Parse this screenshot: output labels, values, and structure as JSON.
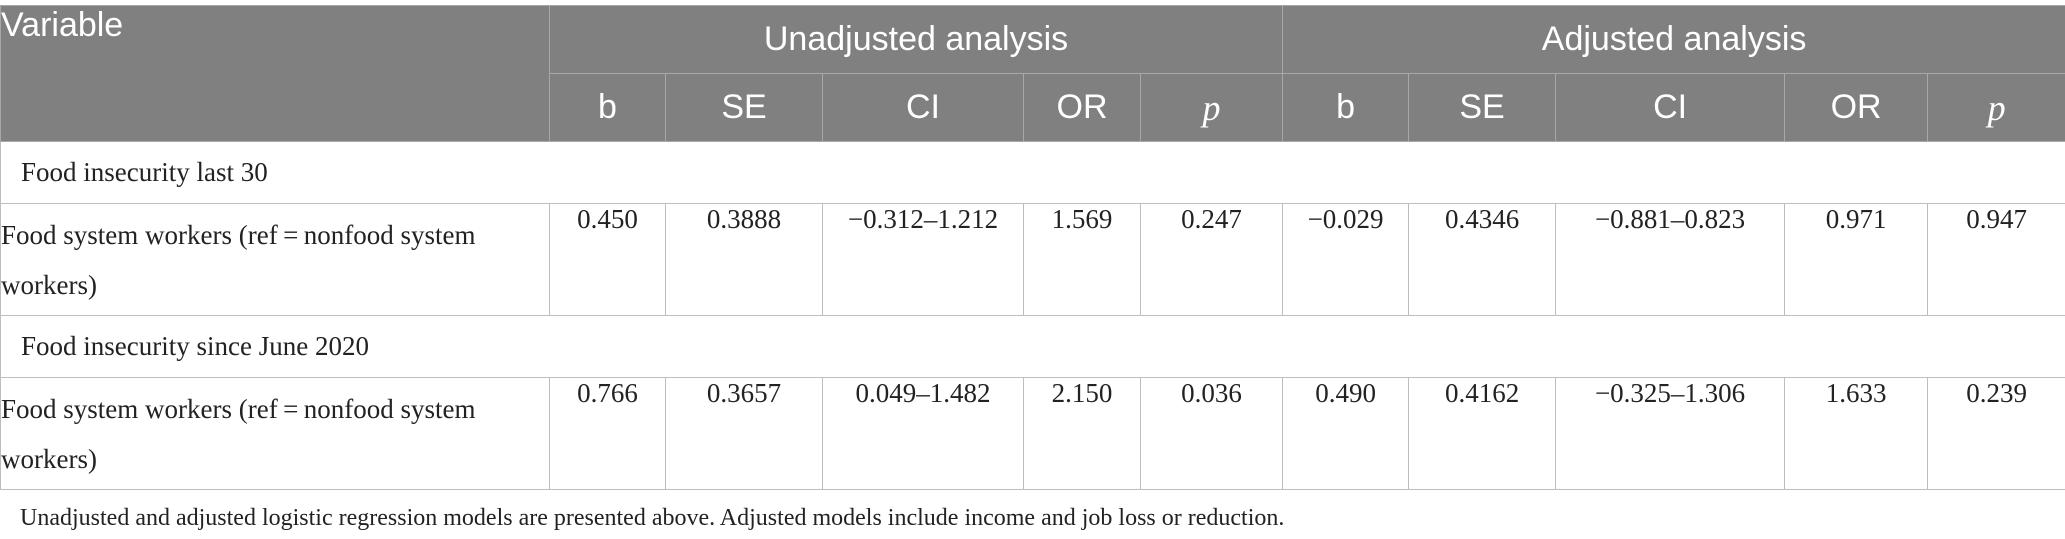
{
  "header": {
    "variable": "Variable",
    "groups": [
      "Unadjusted analysis",
      "Adjusted analysis"
    ],
    "columns": [
      "b",
      "SE",
      "CI",
      "OR",
      "p"
    ]
  },
  "sections": [
    {
      "title": "Food insecurity last 30",
      "rows": [
        {
          "label": "Food system workers (ref = nonfood system workers)",
          "unadjusted": [
            "0.450",
            "0.3888",
            "−0.312–1.212",
            "1.569",
            "0.247"
          ],
          "adjusted": [
            "−0.029",
            "0.4346",
            "−0.881–0.823",
            "0.971",
            "0.947"
          ]
        }
      ]
    },
    {
      "title": "Food insecurity since June 2020",
      "rows": [
        {
          "label": "Food system workers (ref = nonfood system workers)",
          "unadjusted": [
            "0.766",
            "0.3657",
            "0.049–1.482",
            "2.150",
            "0.036"
          ],
          "adjusted": [
            "0.490",
            "0.4162",
            "−0.325–1.306",
            "1.633",
            "0.239"
          ]
        }
      ]
    }
  ],
  "footnote": "Unadjusted and adjusted logistic regression models are presented above. Adjusted models include income and job loss or reduction."
}
